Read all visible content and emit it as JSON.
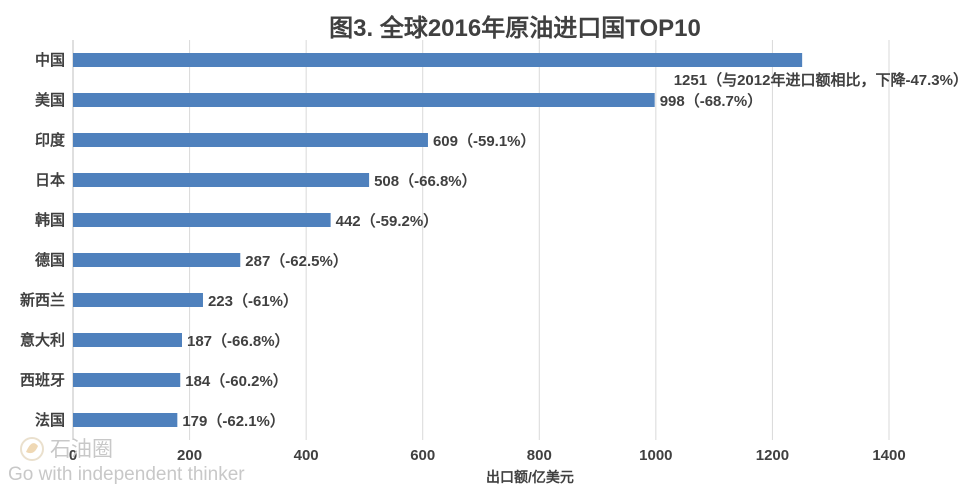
{
  "chart_data": {
    "type": "bar",
    "orientation": "horizontal",
    "title": "图3. 全球2016年原油进口国TOP10",
    "xlabel": "出口额/亿美元",
    "ylabel": "",
    "xlim": [
      0,
      1400
    ],
    "xticks": [
      "0",
      "200",
      "400",
      "600",
      "800",
      "1000",
      "1200",
      "1400"
    ],
    "grid": true,
    "categories": [
      "中国",
      "美国",
      "印度",
      "日本",
      "韩国",
      "德国",
      "新西兰",
      "意大利",
      "西班牙",
      "法国"
    ],
    "values": [
      1251,
      998,
      609,
      508,
      442,
      287,
      223,
      187,
      184,
      179
    ],
    "data_labels": [
      "1251（与2012年进口额相比，下降-47.3%）",
      "998（-68.7%）",
      "609（-59.1%）",
      "508（-66.8%）",
      "442（-59.2%）",
      "287（-62.5%）",
      "223（-61%）",
      "187（-66.8%）",
      "184（-60.2%）",
      "179（-62.1%）"
    ],
    "bar_color": "#4f81bd"
  },
  "watermark": {
    "brand": "石油圈",
    "slogan": "Go with independent thinker"
  }
}
